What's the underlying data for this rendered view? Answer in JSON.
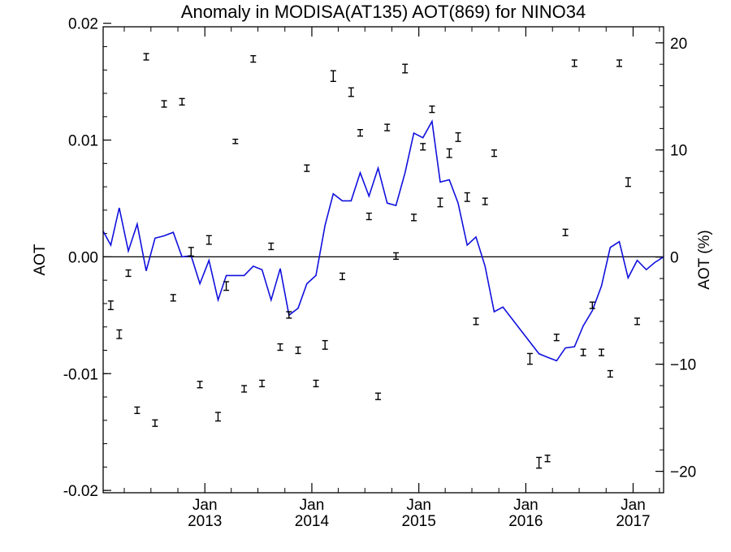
{
  "chart_data": {
    "type": "line",
    "title": "Anomaly in MODISA(AT135) AOT(869) for NINO34",
    "ylabel_left": "AOT",
    "ylabel_right": "AOT (%)",
    "x_range": [
      "2012-01-20",
      "2017-04-15"
    ],
    "ylim_left": [
      -0.0202,
      0.0197
    ],
    "ylim_right": [
      -22.0,
      21.5
    ],
    "yticks_left": [
      "0.02",
      "0.01",
      "0.00",
      "-0.01",
      "-0.02"
    ],
    "yticks_right": [
      "20",
      "10",
      "0",
      "-10",
      "-20"
    ],
    "xticks": [
      {
        "month": "Jan",
        "year": "2013",
        "date": "2013-01-01"
      },
      {
        "month": "Jan",
        "year": "2014",
        "date": "2014-01-01"
      },
      {
        "month": "Jan",
        "year": "2015",
        "date": "2015-01-01"
      },
      {
        "month": "Jan",
        "year": "2016",
        "date": "2016-01-01"
      },
      {
        "month": "Jan",
        "year": "2017",
        "date": "2017-01-01"
      }
    ],
    "zero_line": true,
    "colors": {
      "line": "#1010dd",
      "points": "#000000",
      "axis": "#000000"
    },
    "line_series": {
      "axis": "left",
      "points": [
        [
          "2012-01-20",
          0.0022
        ],
        [
          "2012-02-15",
          0.001
        ],
        [
          "2012-03-15",
          0.0042
        ],
        [
          "2012-04-15",
          0.0005
        ],
        [
          "2012-05-15",
          0.0028
        ],
        [
          "2012-06-15",
          -0.0012
        ],
        [
          "2012-07-15",
          0.0016
        ],
        [
          "2012-08-15",
          0.0018
        ],
        [
          "2012-09-15",
          0.0021
        ],
        [
          "2012-10-15",
          0.0
        ],
        [
          "2012-11-15",
          0.0001
        ],
        [
          "2012-12-15",
          -0.0023
        ],
        [
          "2013-01-15",
          -0.0003
        ],
        [
          "2013-02-15",
          -0.0037
        ],
        [
          "2013-03-15",
          -0.0016
        ],
        [
          "2013-04-15",
          -0.0016
        ],
        [
          "2013-05-15",
          -0.0016
        ],
        [
          "2013-06-15",
          -0.0008
        ],
        [
          "2013-07-15",
          -0.0011
        ],
        [
          "2013-08-15",
          -0.0037
        ],
        [
          "2013-09-15",
          -0.001
        ],
        [
          "2013-10-15",
          -0.005
        ],
        [
          "2013-11-15",
          -0.0044
        ],
        [
          "2013-12-15",
          -0.0023
        ],
        [
          "2014-01-15",
          -0.0016
        ],
        [
          "2014-02-15",
          0.0027
        ],
        [
          "2014-03-15",
          0.0054
        ],
        [
          "2014-04-15",
          0.0048
        ],
        [
          "2014-05-15",
          0.0048
        ],
        [
          "2014-06-15",
          0.0072
        ],
        [
          "2014-07-15",
          0.0052
        ],
        [
          "2014-08-15",
          0.0076
        ],
        [
          "2014-09-15",
          0.0046
        ],
        [
          "2014-10-15",
          0.0044
        ],
        [
          "2014-11-15",
          0.0072
        ],
        [
          "2014-12-15",
          0.0106
        ],
        [
          "2015-01-15",
          0.0102
        ],
        [
          "2015-02-15",
          0.0116
        ],
        [
          "2015-03-15",
          0.0064
        ],
        [
          "2015-04-15",
          0.0066
        ],
        [
          "2015-05-15",
          0.0046
        ],
        [
          "2015-06-15",
          0.001
        ],
        [
          "2015-07-15",
          0.0017
        ],
        [
          "2015-08-15",
          -0.0008
        ],
        [
          "2015-09-15",
          -0.0047
        ],
        [
          "2015-10-15",
          -0.0043
        ],
        [
          "2016-02-15",
          -0.0083
        ],
        [
          "2016-03-15",
          -0.0086
        ],
        [
          "2016-04-15",
          -0.0089
        ],
        [
          "2016-05-15",
          -0.0078
        ],
        [
          "2016-06-15",
          -0.0077
        ],
        [
          "2016-07-15",
          -0.0059
        ],
        [
          "2016-08-15",
          -0.0046
        ],
        [
          "2016-09-15",
          -0.0025
        ],
        [
          "2016-10-15",
          0.0008
        ],
        [
          "2016-11-15",
          0.0013
        ],
        [
          "2016-12-15",
          -0.0018
        ],
        [
          "2017-01-15",
          -0.0003
        ],
        [
          "2017-02-15",
          -0.0011
        ],
        [
          "2017-03-15",
          -0.0005
        ],
        [
          "2017-04-15",
          0.0
        ]
      ]
    },
    "error_points": {
      "axis": "right",
      "points": [
        [
          "2012-02-15",
          -4.5,
          0.4
        ],
        [
          "2012-03-15",
          -7.2,
          0.4
        ],
        [
          "2012-04-15",
          -1.5,
          0.3
        ],
        [
          "2012-05-15",
          -14.3,
          0.3
        ],
        [
          "2012-06-15",
          18.7,
          0.3
        ],
        [
          "2012-07-15",
          -15.5,
          0.3
        ],
        [
          "2012-08-15",
          14.3,
          0.3
        ],
        [
          "2012-09-15",
          -3.8,
          0.3
        ],
        [
          "2012-10-15",
          14.5,
          0.3
        ],
        [
          "2012-11-15",
          0.5,
          0.4
        ],
        [
          "2012-12-15",
          -11.9,
          0.3
        ],
        [
          "2013-01-15",
          1.6,
          0.4
        ],
        [
          "2013-02-15",
          -14.9,
          0.4
        ],
        [
          "2013-03-15",
          -2.7,
          0.4
        ],
        [
          "2013-04-15",
          10.8,
          0.2
        ],
        [
          "2013-05-15",
          -12.3,
          0.3
        ],
        [
          "2013-06-15",
          18.5,
          0.3
        ],
        [
          "2013-07-15",
          -11.8,
          0.3
        ],
        [
          "2013-08-15",
          1.0,
          0.3
        ],
        [
          "2013-09-15",
          -8.4,
          0.3
        ],
        [
          "2013-10-15",
          -5.4,
          0.3
        ],
        [
          "2013-11-15",
          -8.7,
          0.3
        ],
        [
          "2013-12-15",
          8.3,
          0.3
        ],
        [
          "2014-01-15",
          -11.8,
          0.3
        ],
        [
          "2014-02-15",
          -8.2,
          0.4
        ],
        [
          "2014-03-15",
          16.9,
          0.5
        ],
        [
          "2014-04-15",
          -1.8,
          0.3
        ],
        [
          "2014-05-15",
          15.4,
          0.4
        ],
        [
          "2014-06-15",
          11.6,
          0.3
        ],
        [
          "2014-07-15",
          3.8,
          0.3
        ],
        [
          "2014-08-15",
          -13.0,
          0.3
        ],
        [
          "2014-09-15",
          12.1,
          0.3
        ],
        [
          "2014-10-15",
          0.1,
          0.3
        ],
        [
          "2014-11-15",
          17.6,
          0.4
        ],
        [
          "2014-12-15",
          3.7,
          0.3
        ],
        [
          "2015-01-15",
          10.3,
          0.3
        ],
        [
          "2015-02-15",
          13.8,
          0.3
        ],
        [
          "2015-03-15",
          5.1,
          0.4
        ],
        [
          "2015-04-15",
          9.7,
          0.4
        ],
        [
          "2015-05-15",
          11.2,
          0.4
        ],
        [
          "2015-06-15",
          5.6,
          0.4
        ],
        [
          "2015-07-15",
          -6.0,
          0.3
        ],
        [
          "2015-08-15",
          5.2,
          0.3
        ],
        [
          "2015-09-15",
          9.7,
          0.3
        ],
        [
          "2016-01-15",
          -9.5,
          0.5
        ],
        [
          "2016-02-15",
          -19.2,
          0.5
        ],
        [
          "2016-03-15",
          -18.8,
          0.3
        ],
        [
          "2016-04-15",
          -7.5,
          0.3
        ],
        [
          "2016-05-15",
          2.3,
          0.3
        ],
        [
          "2016-06-15",
          18.1,
          0.3
        ],
        [
          "2016-07-15",
          -8.9,
          0.3
        ],
        [
          "2016-08-15",
          -4.5,
          0.3
        ],
        [
          "2016-09-15",
          -8.9,
          0.3
        ],
        [
          "2016-10-15",
          -10.9,
          0.3
        ],
        [
          "2016-11-15",
          18.1,
          0.3
        ],
        [
          "2016-12-15",
          7.0,
          0.4
        ],
        [
          "2017-01-15",
          -6.0,
          0.3
        ]
      ]
    }
  }
}
